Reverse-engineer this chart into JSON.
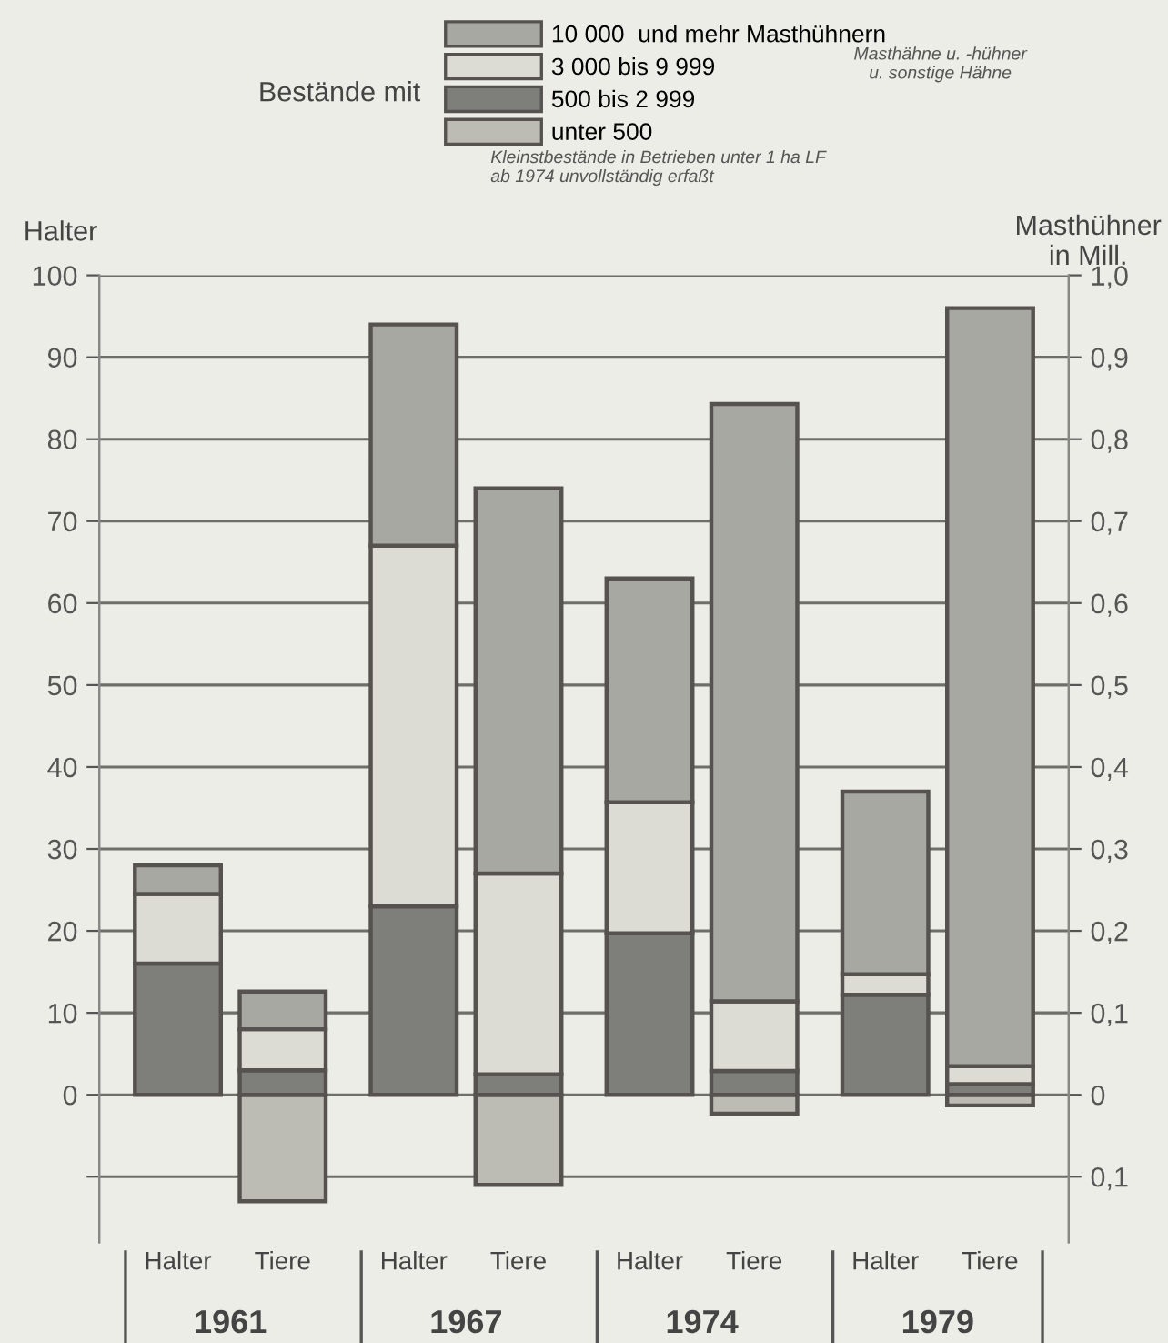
{
  "chart_data": {
    "type": "bar",
    "stacked": true,
    "legend_title": "Bestände mit",
    "ylabel": "Halter",
    "y2label": "Masthühner\nin Mill.",
    "categories": [
      "Halter",
      "Tiere",
      "Halter",
      "Tiere",
      "Halter",
      "Tiere",
      "Halter",
      "Tiere"
    ],
    "series": [
      {
        "name": "unter 500",
        "color": "#bcbcb5",
        "values": [
          null,
          null,
          null,
          null,
          null,
          null,
          null,
          null
        ]
      },
      {
        "name": "500 bis 2 999",
        "color": "#7e7e7a",
        "values": [
          16,
          null,
          23,
          null,
          19.7,
          null,
          12.2,
          null
        ]
      },
      {
        "name": "3 000 bis 9 999",
        "color": "#dcdcd4",
        "values": [
          8.5,
          null,
          44,
          null,
          16,
          null,
          2.5,
          null
        ]
      },
      {
        "name": "10 000  und mehr Masthühnern",
        "color": "#a8a8a2",
        "values": [
          3.5,
          null,
          27,
          null,
          27.3,
          null,
          22.3,
          null
        ]
      },
      {
        "axis": "y2",
        "color": "#bcbcb5",
        "values": [
          null,
          -0.13,
          null,
          -0.11,
          null,
          -0.023,
          null,
          -0.013
        ]
      },
      {
        "axis": "y2",
        "color": "#7e7e7a",
        "values": [
          null,
          0.03,
          null,
          0.025,
          null,
          0.029,
          null,
          0.013
        ]
      },
      {
        "axis": "y2",
        "color": "#dcdcd4",
        "values": [
          null,
          0.05,
          null,
          0.245,
          null,
          0.085,
          null,
          0.022
        ]
      },
      {
        "axis": "y2",
        "color": "#a8a8a2",
        "values": [
          null,
          0.046,
          null,
          0.47,
          null,
          0.729,
          null,
          0.925
        ]
      }
    ],
    "ylim": [
      -18,
      100
    ],
    "yticks": [
      {
        "value": -10,
        "label": null
      },
      0,
      10,
      20,
      30,
      40,
      50,
      60,
      70,
      80,
      90,
      100
    ],
    "y2lim": [
      -0.18,
      1.0
    ],
    "y2ticks": [
      {
        "value": -0.1,
        "label": "0,1"
      },
      0,
      {
        "value": 0.1,
        "label": "0,1"
      },
      {
        "value": 0.2,
        "label": "0,2"
      },
      {
        "value": 0.3,
        "label": "0,3"
      },
      {
        "value": 0.4,
        "label": "0,4"
      },
      {
        "value": 0.5,
        "label": "0,5"
      },
      {
        "value": 0.6,
        "label": "0,6"
      },
      {
        "value": 0.7,
        "label": "0,7"
      },
      {
        "value": 0.8,
        "label": "0,8"
      },
      {
        "value": 0.9,
        "label": "0,9"
      },
      {
        "value": 1.0,
        "label": "1,0"
      }
    ],
    "grid": "y",
    "legend": "top",
    "annotations": [
      "1961",
      "1967",
      "1974",
      "1979",
      "Masthähne u. -hühner\nu. sonstige Hähne",
      "Kleinstbestände in Betrieben unter 1 ha LF\nab 1974 unvollständig erfaßt"
    ]
  }
}
